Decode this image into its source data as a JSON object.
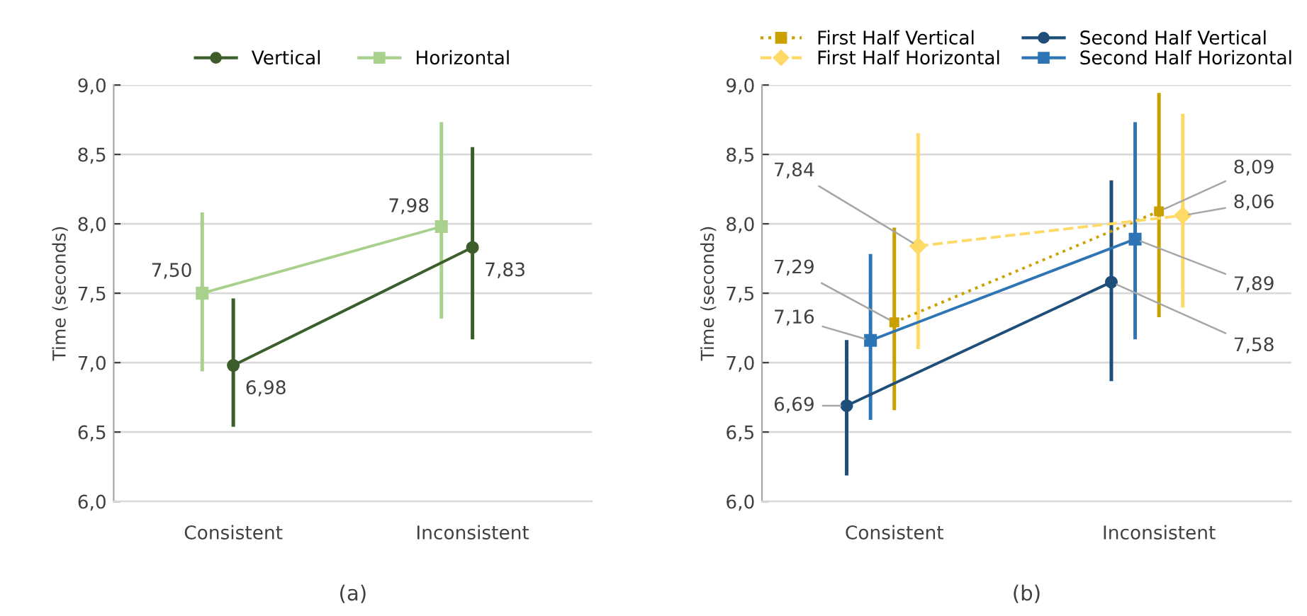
{
  "chart_data": [
    {
      "type": "line",
      "categories": [
        "Consistent",
        "Inconsistent"
      ],
      "ylabel": "Time (seconds)",
      "ylim": [
        6.0,
        9.0
      ],
      "yticks": [
        {
          "value": 6.0,
          "label": "6,0"
        },
        {
          "value": 6.5,
          "label": "6,5"
        },
        {
          "value": 7.0,
          "label": "7,0"
        },
        {
          "value": 7.5,
          "label": "7,5"
        },
        {
          "value": 8.0,
          "label": "8,0"
        },
        {
          "value": 8.5,
          "label": "8,5"
        },
        {
          "value": 9.0,
          "label": "9,0"
        }
      ],
      "grid": "y",
      "legend": "top",
      "annotations": [
        "(a)"
      ],
      "series": [
        {
          "name": "Vertical",
          "color": "#3b5e2b",
          "marker": "circle",
          "line_style": "solid",
          "values": [
            6.98,
            7.83
          ],
          "value_labels": [
            "6,98",
            "7,83"
          ],
          "errors": [
            [
              6.55,
              7.45
            ],
            [
              7.18,
              8.54
            ]
          ]
        },
        {
          "name": "Horizontal",
          "color": "#a9d18e",
          "marker": "square",
          "line_style": "solid",
          "values": [
            7.5,
            7.98
          ],
          "value_labels": [
            "7,50",
            "7,98"
          ],
          "errors": [
            [
              6.95,
              8.07
            ],
            [
              7.33,
              8.72
            ]
          ]
        }
      ]
    },
    {
      "type": "line",
      "categories": [
        "Consistent",
        "Inconsistent"
      ],
      "ylabel": "Time (seconds)",
      "ylim": [
        6.0,
        9.0
      ],
      "yticks": [
        {
          "value": 6.0,
          "label": "6,0"
        },
        {
          "value": 6.5,
          "label": "6,5"
        },
        {
          "value": 7.0,
          "label": "7,0"
        },
        {
          "value": 7.5,
          "label": "7,5"
        },
        {
          "value": 8.0,
          "label": "8,0"
        },
        {
          "value": 8.5,
          "label": "8,5"
        },
        {
          "value": 9.0,
          "label": "9,0"
        }
      ],
      "grid": "y",
      "legend": "top",
      "annotations": [
        "(b)"
      ],
      "series": [
        {
          "name": "Second Half Vertical",
          "color": "#1f4e79",
          "marker": "circle",
          "line_style": "solid",
          "values": [
            6.69,
            7.58
          ],
          "value_labels": [
            "6,69",
            "7,58"
          ],
          "errors": [
            [
              6.2,
              7.15
            ],
            [
              6.88,
              8.3
            ]
          ]
        },
        {
          "name": "Second Half Horizontal",
          "color": "#2e75b6",
          "marker": "square",
          "line_style": "solid",
          "values": [
            7.16,
            7.89
          ],
          "value_labels": [
            "7,16",
            "7,89"
          ],
          "errors": [
            [
              6.6,
              7.77
            ],
            [
              7.18,
              8.72
            ]
          ]
        },
        {
          "name": "First Half Vertical",
          "color": "#c9a000",
          "marker": "square",
          "line_style": "dotted",
          "values": [
            7.29,
            8.09
          ],
          "value_labels": [
            "7,29",
            "8,09"
          ],
          "errors": [
            [
              6.67,
              7.96
            ],
            [
              7.34,
              8.93
            ]
          ]
        },
        {
          "name": "First Half Horizontal",
          "color": "#ffd966",
          "marker": "diamond",
          "line_style": "dashed",
          "values": [
            7.84,
            8.06
          ],
          "value_labels": [
            "7,84",
            "8,06"
          ],
          "errors": [
            [
              7.11,
              8.64
            ],
            [
              7.41,
              8.78
            ]
          ]
        }
      ]
    }
  ]
}
